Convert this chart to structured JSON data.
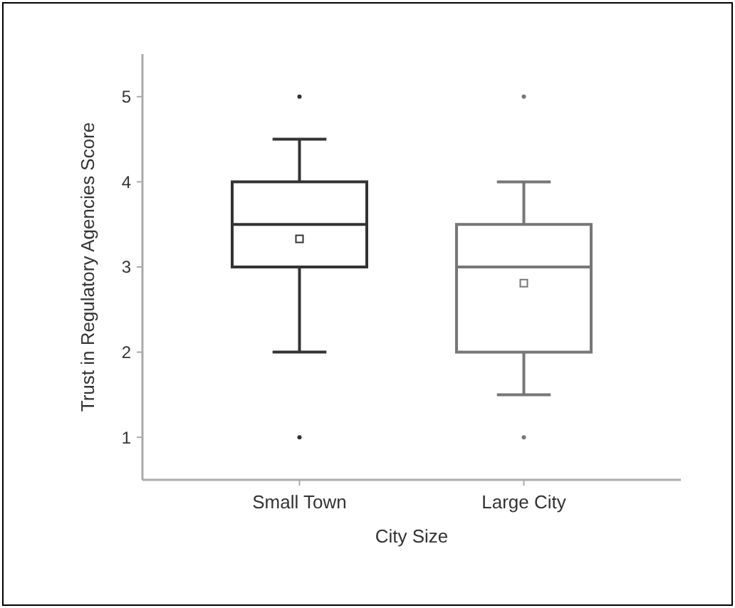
{
  "chart_data": {
    "type": "box",
    "xlabel": "City Size",
    "ylabel": "Trust in Regulatory Agencies Score",
    "categories": [
      "Small Town",
      "Large City"
    ],
    "colors": [
      "#333333",
      "#777777"
    ],
    "boxes": [
      {
        "low": 2,
        "q1": 3,
        "median": 3.5,
        "q3": 4,
        "high": 4.5,
        "mean": 3.33,
        "outliers": [
          1,
          5
        ]
      },
      {
        "low": 1.5,
        "q1": 2,
        "median": 3,
        "q3": 3.5,
        "high": 4,
        "mean": 2.81,
        "outliers": [
          1,
          5
        ]
      }
    ],
    "ylim": [
      0.5,
      5.5
    ],
    "yticks": [
      1,
      2,
      3,
      4,
      5
    ],
    "grid": false,
    "marker": "square"
  }
}
